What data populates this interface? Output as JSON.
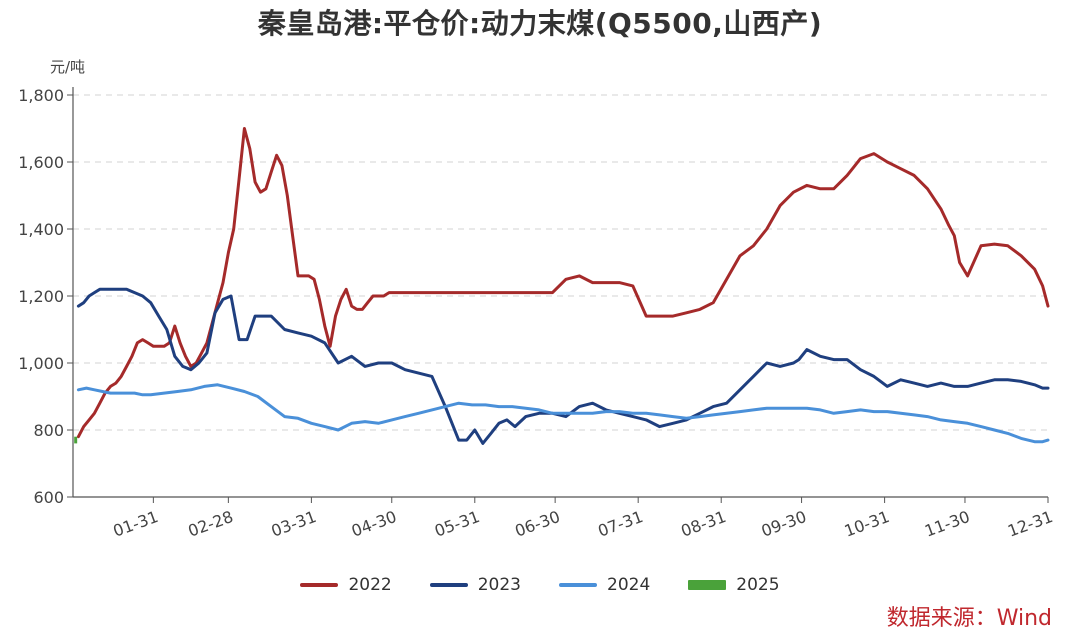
{
  "chart_data": {
    "type": "line",
    "title": "秦皇岛港:平仓价:动力末煤(Q5500,山西产)",
    "ylabel": "元/吨",
    "xlabel": "",
    "ylim": [
      600,
      1800
    ],
    "yticks": [
      "600",
      "800",
      "1,000",
      "1,200",
      "1,400",
      "1,600",
      "1,800"
    ],
    "ytick_values": [
      600,
      800,
      1000,
      1200,
      1400,
      1600,
      1800
    ],
    "xlim": [
      1,
      365
    ],
    "xticks": [
      "01-31",
      "02-28",
      "03-31",
      "04-30",
      "05-31",
      "06-30",
      "07-31",
      "08-31",
      "09-30",
      "10-31",
      "11-30",
      "12-31"
    ],
    "xtick_days": [
      31,
      59,
      90,
      120,
      151,
      181,
      212,
      243,
      273,
      304,
      334,
      365
    ],
    "grid": "horizontal-dashed",
    "legend_position": "bottom",
    "series": [
      {
        "name": "2022",
        "color": "#a52a2a",
        "x": [
          3,
          5,
          7,
          9,
          11,
          13,
          15,
          17,
          19,
          21,
          23,
          25,
          27,
          29,
          31,
          33,
          35,
          37,
          39,
          41,
          43,
          45,
          47,
          49,
          51,
          53,
          55,
          57,
          59,
          61,
          63,
          65,
          67,
          69,
          71,
          73,
          75,
          77,
          79,
          81,
          83,
          85,
          87,
          89,
          91,
          93,
          95,
          97,
          99,
          101,
          103,
          105,
          107,
          109,
          111,
          113,
          115,
          117,
          119,
          121,
          123,
          125,
          130,
          140,
          150,
          160,
          170,
          180,
          185,
          190,
          195,
          200,
          205,
          210,
          215,
          220,
          225,
          230,
          235,
          240,
          245,
          250,
          255,
          260,
          265,
          270,
          275,
          280,
          285,
          290,
          292,
          295,
          300,
          305,
          310,
          315,
          320,
          325,
          328,
          330,
          332,
          335,
          340,
          345,
          350,
          355,
          360,
          363,
          365
        ],
        "y": [
          780,
          810,
          830,
          850,
          880,
          910,
          930,
          940,
          960,
          990,
          1020,
          1060,
          1070,
          1060,
          1050,
          1050,
          1050,
          1060,
          1110,
          1060,
          1020,
          990,
          1000,
          1030,
          1060,
          1120,
          1180,
          1240,
          1330,
          1400,
          1550,
          1700,
          1640,
          1540,
          1510,
          1520,
          1570,
          1620,
          1590,
          1500,
          1380,
          1260,
          1260,
          1260,
          1250,
          1190,
          1110,
          1050,
          1140,
          1190,
          1220,
          1170,
          1160,
          1160,
          1180,
          1200,
          1200,
          1200,
          1210,
          1210,
          1210,
          1210,
          1210,
          1210,
          1210,
          1210,
          1210,
          1210,
          1250,
          1260,
          1240,
          1240,
          1240,
          1230,
          1140,
          1140,
          1140,
          1150,
          1160,
          1180,
          1250,
          1320,
          1350,
          1400,
          1470,
          1510,
          1530,
          1520,
          1520,
          1560,
          1580,
          1610,
          1625,
          1600,
          1580,
          1560,
          1520,
          1460,
          1410,
          1380,
          1300,
          1260,
          1350,
          1355,
          1350,
          1320,
          1280,
          1230,
          1170
        ]
      },
      {
        "name": "2023",
        "color": "#1f3f7f",
        "x": [
          3,
          5,
          7,
          9,
          11,
          13,
          15,
          18,
          21,
          24,
          27,
          30,
          33,
          36,
          39,
          42,
          45,
          48,
          51,
          54,
          57,
          60,
          63,
          66,
          69,
          72,
          75,
          80,
          85,
          90,
          95,
          100,
          105,
          110,
          115,
          120,
          125,
          130,
          135,
          140,
          145,
          148,
          151,
          154,
          157,
          160,
          163,
          166,
          170,
          175,
          180,
          185,
          190,
          195,
          200,
          205,
          210,
          215,
          220,
          225,
          230,
          235,
          240,
          245,
          250,
          255,
          260,
          265,
          270,
          272,
          275,
          280,
          285,
          290,
          295,
          300,
          305,
          310,
          315,
          320,
          325,
          330,
          335,
          340,
          345,
          350,
          355,
          360,
          363,
          365
        ],
        "y": [
          1170,
          1180,
          1200,
          1210,
          1220,
          1220,
          1220,
          1220,
          1220,
          1210,
          1200,
          1180,
          1140,
          1100,
          1020,
          990,
          980,
          1000,
          1030,
          1150,
          1190,
          1200,
          1070,
          1070,
          1140,
          1140,
          1140,
          1100,
          1090,
          1080,
          1060,
          1000,
          1020,
          990,
          1000,
          1000,
          980,
          970,
          960,
          870,
          770,
          770,
          800,
          760,
          790,
          820,
          830,
          810,
          840,
          850,
          850,
          840,
          870,
          880,
          860,
          850,
          840,
          830,
          810,
          820,
          830,
          850,
          870,
          880,
          920,
          960,
          1000,
          990,
          1000,
          1010,
          1040,
          1020,
          1010,
          1010,
          980,
          960,
          930,
          950,
          940,
          930,
          940,
          930,
          930,
          940,
          950,
          950,
          945,
          935,
          925,
          925
        ]
      },
      {
        "name": "2024",
        "color": "#4a90d9",
        "x": [
          3,
          6,
          9,
          12,
          15,
          18,
          21,
          24,
          27,
          30,
          35,
          40,
          45,
          50,
          55,
          60,
          65,
          70,
          75,
          80,
          85,
          90,
          95,
          100,
          105,
          110,
          115,
          120,
          125,
          130,
          135,
          140,
          145,
          150,
          155,
          160,
          165,
          170,
          175,
          180,
          185,
          190,
          195,
          200,
          205,
          210,
          215,
          220,
          225,
          230,
          235,
          240,
          245,
          250,
          255,
          260,
          265,
          270,
          275,
          280,
          285,
          290,
          295,
          300,
          305,
          310,
          315,
          320,
          325,
          330,
          335,
          340,
          345,
          350,
          355,
          360,
          363,
          365
        ],
        "y": [
          920,
          925,
          920,
          915,
          910,
          910,
          910,
          910,
          905,
          905,
          910,
          915,
          920,
          930,
          935,
          925,
          915,
          900,
          870,
          840,
          835,
          820,
          810,
          800,
          820,
          825,
          820,
          830,
          840,
          850,
          860,
          870,
          880,
          875,
          875,
          870,
          870,
          865,
          860,
          850,
          850,
          850,
          850,
          855,
          855,
          850,
          850,
          845,
          840,
          835,
          840,
          845,
          850,
          855,
          860,
          865,
          865,
          865,
          865,
          860,
          850,
          855,
          860,
          855,
          855,
          850,
          845,
          840,
          830,
          825,
          820,
          810,
          800,
          790,
          775,
          765,
          765,
          770
        ]
      },
      {
        "name": "2025",
        "color": "#4aa23a",
        "type": "bar",
        "x": [
          2
        ],
        "y": [
          780
        ],
        "y0": [
          760
        ]
      }
    ]
  },
  "source": "数据来源：Wind"
}
